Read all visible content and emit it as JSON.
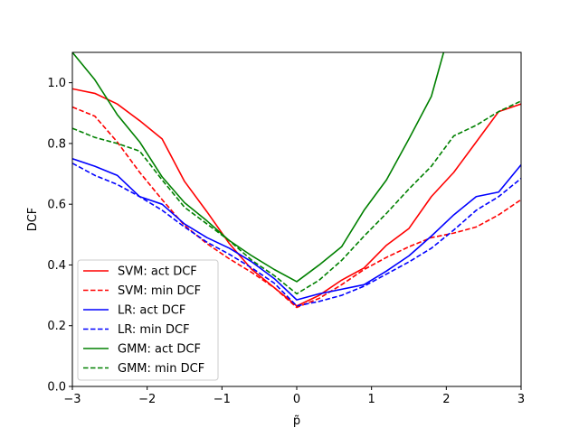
{
  "chart_data": {
    "type": "line",
    "title": "",
    "xlabel": "p̃",
    "ylabel": "DCF",
    "xlim": [
      -3,
      3
    ],
    "ylim": [
      0,
      1.1
    ],
    "xticks": [
      -3,
      -2,
      -1,
      0,
      1,
      2,
      3
    ],
    "xtick_labels": [
      "−3",
      "−2",
      "−1",
      "0",
      "1",
      "2",
      "3"
    ],
    "yticks": [
      0,
      0.2,
      0.4,
      0.6,
      0.8,
      1.0
    ],
    "ytick_labels": [
      "0.0",
      "0.2",
      "0.4",
      "0.6",
      "0.8",
      "1.0"
    ],
    "grid": false,
    "legend_position": "lower-left",
    "x": [
      -3.0,
      -2.7,
      -2.4,
      -2.1,
      -1.8,
      -1.5,
      -1.2,
      -0.9,
      -0.6,
      -0.3,
      0.0,
      0.3,
      0.6,
      0.9,
      1.2,
      1.5,
      1.8,
      2.1,
      2.4,
      2.7,
      3.0
    ],
    "series": [
      {
        "name": "SVM: act DCF",
        "color": "#ff0000",
        "dash": "solid",
        "values": [
          0.98,
          0.965,
          0.93,
          0.875,
          0.815,
          0.675,
          0.575,
          0.47,
          0.385,
          0.325,
          0.265,
          0.3,
          0.35,
          0.39,
          0.465,
          0.52,
          0.625,
          0.705,
          0.805,
          0.905,
          0.93
        ]
      },
      {
        "name": "SVM: min DCF",
        "color": "#ff0000",
        "dash": "dashed",
        "values": [
          0.92,
          0.89,
          0.805,
          0.705,
          0.615,
          0.53,
          0.47,
          0.42,
          0.375,
          0.325,
          0.26,
          0.29,
          0.335,
          0.385,
          0.425,
          0.46,
          0.49,
          0.505,
          0.525,
          0.565,
          0.615
        ]
      },
      {
        "name": "LR: act DCF",
        "color": "#0000ff",
        "dash": "solid",
        "values": [
          0.75,
          0.725,
          0.695,
          0.625,
          0.6,
          0.535,
          0.49,
          0.455,
          0.41,
          0.355,
          0.285,
          0.305,
          0.32,
          0.335,
          0.38,
          0.43,
          0.495,
          0.565,
          0.625,
          0.64,
          0.73
        ]
      },
      {
        "name": "LR: min DCF",
        "color": "#0000ff",
        "dash": "dashed",
        "values": [
          0.735,
          0.695,
          0.665,
          0.625,
          0.58,
          0.525,
          0.475,
          0.435,
          0.39,
          0.34,
          0.265,
          0.28,
          0.3,
          0.33,
          0.37,
          0.41,
          0.455,
          0.515,
          0.58,
          0.625,
          0.685
        ]
      },
      {
        "name": "GMM: act DCF",
        "color": "#008000",
        "dash": "solid",
        "values": [
          1.1,
          1.01,
          0.895,
          0.805,
          0.69,
          0.605,
          0.545,
          0.48,
          0.43,
          0.385,
          0.345,
          0.4,
          0.46,
          0.58,
          0.68,
          0.815,
          0.955,
          1.22,
          null,
          null,
          null
        ]
      },
      {
        "name": "GMM: min DCF",
        "color": "#008000",
        "dash": "dashed",
        "values": [
          0.85,
          0.82,
          0.8,
          0.775,
          0.68,
          0.59,
          0.535,
          0.48,
          0.415,
          0.365,
          0.305,
          0.35,
          0.415,
          0.495,
          0.57,
          0.65,
          0.725,
          0.825,
          0.86,
          0.905,
          0.94
        ]
      }
    ]
  }
}
